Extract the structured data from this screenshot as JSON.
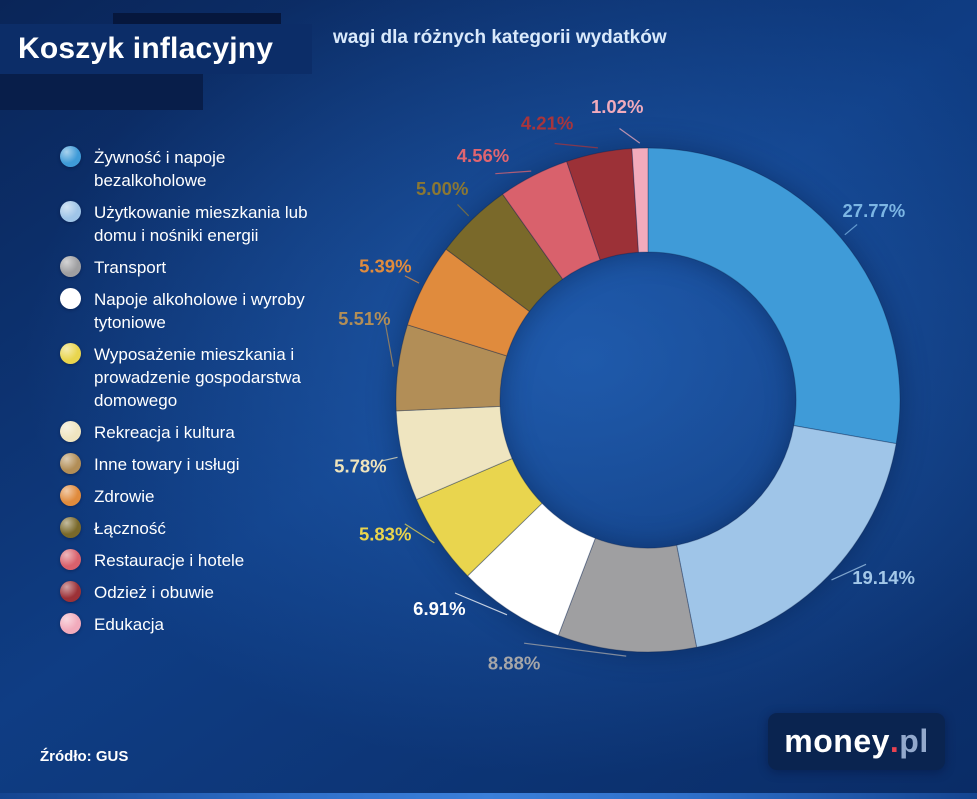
{
  "header": {
    "title": "Koszyk inflacyjny",
    "subtitle": "wagi dla różnych kategorii wydatków"
  },
  "chart_data": {
    "type": "pie",
    "donut": true,
    "title": "wagi dla różnych kategorii wydatków",
    "legend_position": "left",
    "start_angle": "top",
    "direction": "clockwise",
    "value_format": "percent",
    "categories": [
      "Żywność i napoje bezalkoholowe",
      "Użytkowanie mieszkania lub domu i nośniki energii",
      "Transport",
      "Napoje alkoholowe i wyroby tytoniowe",
      "Wyposażenie mieszkania i prowadzenie gospodarstwa domowego",
      "Rekreacja i kultura",
      "Inne towary i usługi",
      "Zdrowie",
      "Łączność",
      "Restauracje i hotele",
      "Odzież i obuwie",
      "Edukacja"
    ],
    "values": [
      27.77,
      19.14,
      8.88,
      6.91,
      5.83,
      5.78,
      5.51,
      5.39,
      5.0,
      4.56,
      4.21,
      1.02
    ],
    "percent_labels": [
      "27.77%",
      "19.14%",
      "8.88%",
      "6.91%",
      "5.83%",
      "5.78%",
      "5.51%",
      "5.39%",
      "5.00%",
      "4.56%",
      "4.21%",
      "1.02%"
    ],
    "colors": [
      "#3f9bd8",
      "#9fc5e8",
      "#9f9fa1",
      "#ffffff",
      "#e9d54e",
      "#efe5c0",
      "#b28e57",
      "#e08b3d",
      "#7a692a",
      "#d9616c",
      "#9c3137",
      "#f2abbc"
    ],
    "label_colors": [
      "#7cb6e4",
      "#a3c8e9",
      "#a6a6a8",
      "#ffffff",
      "#e9d44c",
      "#efe4bc",
      "#b28e57",
      "#e08b3d",
      "#8a7733",
      "#e06570",
      "#a8353c",
      "#f2abbc"
    ]
  },
  "footer": {
    "source": "Źródło: GUS",
    "logo_text": "money",
    "logo_dot": ".",
    "logo_suffix": "pl"
  }
}
